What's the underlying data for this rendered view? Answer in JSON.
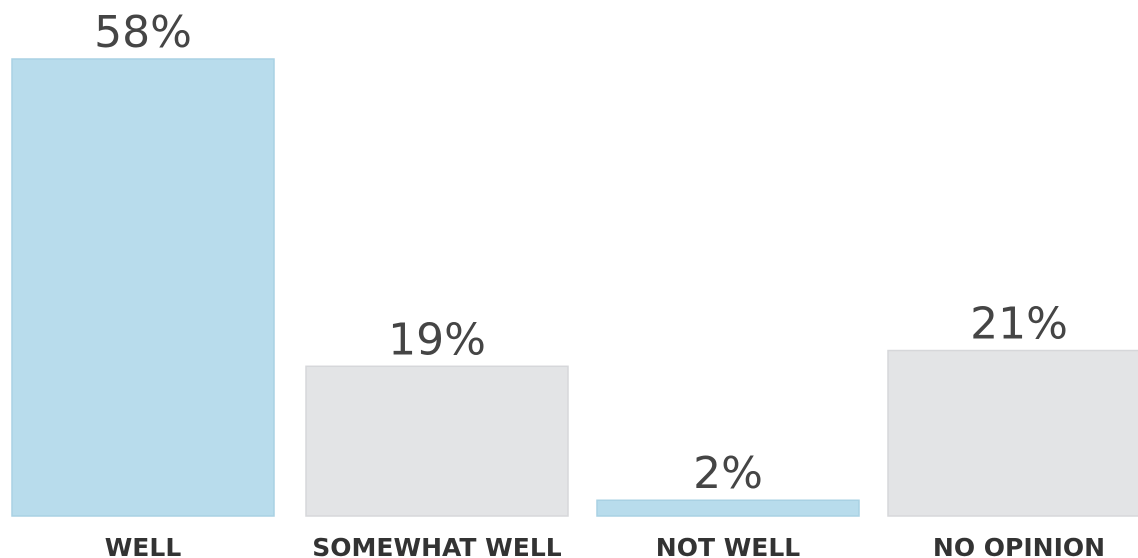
{
  "chart_data": {
    "type": "bar",
    "categories": [
      "WELL",
      "SOMEWHAT WELL",
      "NOT WELL",
      "NO OPINION"
    ],
    "values": [
      58,
      19,
      2,
      21
    ],
    "value_labels": [
      "58%",
      "19%",
      "2%",
      "21%"
    ],
    "ylim": [
      0,
      58
    ],
    "grid": false,
    "colors": {
      "highlight": "#b8dcec",
      "neutral": "#e3e4e6",
      "highlight_edge": "#a9d1e3",
      "neutral_edge": "#d6d7da"
    },
    "bar_colors": [
      "highlight",
      "neutral",
      "highlight",
      "neutral"
    ]
  }
}
